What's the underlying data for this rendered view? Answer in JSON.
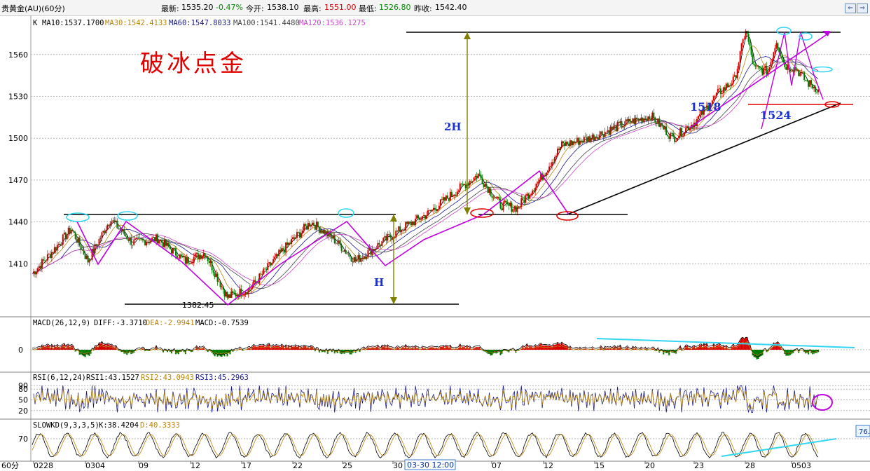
{
  "header": {
    "instrument": "贵黄金(AU)(60分)",
    "latest_label": "最新:",
    "latest_value": "1535.20",
    "change": "-0.47%",
    "open_label": "今开:",
    "open_value": "1538.10",
    "high_label": "最高:",
    "high_value": "1551.00",
    "low_label": "最低:",
    "low_value": "1526.80",
    "prev_close_label": "昨收:",
    "prev_close_value": "1542.40",
    "nav_left": "⇐",
    "nav_right": "⇒"
  },
  "colors": {
    "ma10": "#000000",
    "ma30": "#b8860b",
    "ma60": "#1a1a8c",
    "ma100": "#444444",
    "ma120": "#cc44cc",
    "up_candle": "#d40000",
    "down_candle": "#007a00",
    "title": "#e00000",
    "annotation": "#1a2fd0",
    "trend_magenta": "#c000e0",
    "trend_cyan": "#33d6f2"
  },
  "chart_data": [
    {
      "type": "line",
      "panel": "price",
      "title": "破冰点金",
      "indicator_prefix": "K",
      "moving_averages": [
        {
          "name": "MA10",
          "value": "1537.1700"
        },
        {
          "name": "MA30",
          "value": "1542.4133"
        },
        {
          "name": "MA60",
          "value": "1547.8033"
        },
        {
          "name": "MA100",
          "value": "1541.4480"
        },
        {
          "name": "MA120",
          "value": "1536.1275"
        }
      ],
      "y_ticks": [
        1410,
        1440,
        1470,
        1500,
        1530,
        1560
      ],
      "ylim": [
        1373,
        1586
      ],
      "x_ticks": [
        "0228",
        "0304",
        "09",
        "12",
        "17",
        "22",
        "25",
        "30",
        "07",
        "12",
        "15",
        "20",
        "23",
        "28",
        "0503"
      ],
      "cursor_label": "03-30 12:00",
      "low_marker": "1382.45",
      "annotations": [
        "2H",
        "H",
        "1518",
        "1524"
      ],
      "path_points": [
        {
          "t": 0,
          "price": 1403
        },
        {
          "t": 6,
          "price": 1416
        },
        {
          "t": 14,
          "price": 1435
        },
        {
          "t": 20,
          "price": 1412
        },
        {
          "t": 28,
          "price": 1442
        },
        {
          "t": 36,
          "price": 1425
        },
        {
          "t": 45,
          "price": 1428
        },
        {
          "t": 55,
          "price": 1412
        },
        {
          "t": 62,
          "price": 1418
        },
        {
          "t": 70,
          "price": 1386
        },
        {
          "t": 78,
          "price": 1392
        },
        {
          "t": 90,
          "price": 1420
        },
        {
          "t": 100,
          "price": 1440
        },
        {
          "t": 108,
          "price": 1428
        },
        {
          "t": 116,
          "price": 1412
        },
        {
          "t": 126,
          "price": 1426
        },
        {
          "t": 134,
          "price": 1437
        },
        {
          "t": 142,
          "price": 1446
        },
        {
          "t": 152,
          "price": 1462
        },
        {
          "t": 160,
          "price": 1474
        },
        {
          "t": 168,
          "price": 1452
        },
        {
          "t": 174,
          "price": 1450
        },
        {
          "t": 182,
          "price": 1470
        },
        {
          "t": 190,
          "price": 1495
        },
        {
          "t": 200,
          "price": 1500
        },
        {
          "t": 212,
          "price": 1510
        },
        {
          "t": 222,
          "price": 1516
        },
        {
          "t": 230,
          "price": 1500
        },
        {
          "t": 238,
          "price": 1512
        },
        {
          "t": 246,
          "price": 1532
        },
        {
          "t": 252,
          "price": 1542
        },
        {
          "t": 256,
          "price": 1578
        },
        {
          "t": 259,
          "price": 1550
        },
        {
          "t": 264,
          "price": 1548
        },
        {
          "t": 267,
          "price": 1570
        },
        {
          "t": 270,
          "price": 1552
        },
        {
          "t": 274,
          "price": 1550
        },
        {
          "t": 278,
          "price": 1540
        },
        {
          "t": 282,
          "price": 1535
        }
      ],
      "t_range": [
        0,
        285
      ]
    },
    {
      "type": "bar",
      "panel": "macd",
      "name": "MACD(26,12,9)",
      "readings": [
        {
          "name": "DIFF",
          "value": "-3.3710"
        },
        {
          "name": "DEA",
          "value": "-2.9941"
        },
        {
          "name": "MACD",
          "value": "-0.7539"
        }
      ],
      "y_ticks": [
        0
      ]
    },
    {
      "type": "line",
      "panel": "rsi",
      "name": "RSI(6,12,24)",
      "readings": [
        {
          "name": "RSI1",
          "value": "43.1527"
        },
        {
          "name": "RSI2",
          "value": "43.0943"
        },
        {
          "name": "RSI3",
          "value": "45.2963"
        }
      ],
      "y_ticks": [
        20,
        50,
        80,
        90
      ],
      "ylim": [
        0,
        100
      ]
    },
    {
      "type": "line",
      "panel": "slowkd",
      "name": "SLOWKD(9,3,3,5)",
      "readings": [
        {
          "name": "K",
          "value": "38.4204"
        },
        {
          "name": "D",
          "value": "40.3333"
        }
      ],
      "y_ticks": [
        70
      ],
      "right_badge": "76.",
      "period_label": "60分"
    }
  ]
}
